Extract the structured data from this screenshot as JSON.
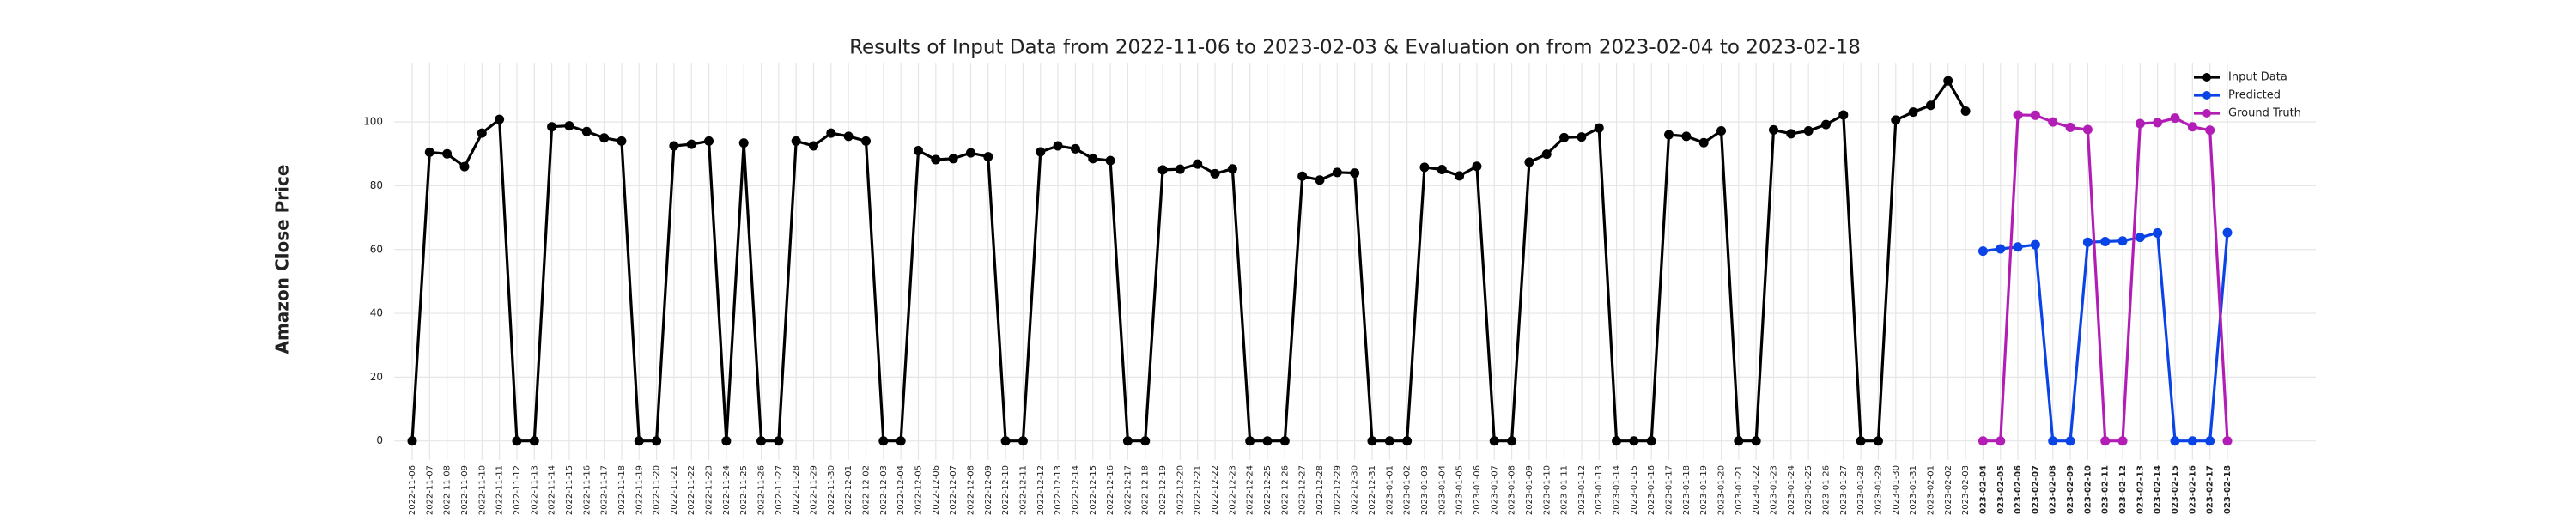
{
  "chart_data": {
    "type": "line",
    "title": "Results of Input Data from 2022-11-06 to 2023-02-03 & Evaluation on from 2023-02-04 to 2023-02-18",
    "ylabel": "Amazon Close Price",
    "categories": [
      "2022-11-06",
      "2022-11-07",
      "2022-11-08",
      "2022-11-09",
      "2022-11-10",
      "2022-11-11",
      "2022-11-12",
      "2022-11-13",
      "2022-11-14",
      "2022-11-15",
      "2022-11-16",
      "2022-11-17",
      "2022-11-18",
      "2022-11-19",
      "2022-11-20",
      "2022-11-21",
      "2022-11-22",
      "2022-11-23",
      "2022-11-24",
      "2022-11-25",
      "2022-11-26",
      "2022-11-27",
      "2022-11-28",
      "2022-11-29",
      "2022-11-30",
      "2022-12-01",
      "2022-12-02",
      "2022-12-03",
      "2022-12-04",
      "2022-12-05",
      "2022-12-06",
      "2022-12-07",
      "2022-12-08",
      "2022-12-09",
      "2022-12-10",
      "2022-12-11",
      "2022-12-12",
      "2022-12-13",
      "2022-12-14",
      "2022-12-15",
      "2022-12-16",
      "2022-12-17",
      "2022-12-18",
      "2022-12-19",
      "2022-12-20",
      "2022-12-21",
      "2022-12-22",
      "2022-12-23",
      "2022-12-24",
      "2022-12-25",
      "2022-12-26",
      "2022-12-27",
      "2022-12-28",
      "2022-12-29",
      "2022-12-30",
      "2022-12-31",
      "2023-01-01",
      "2023-01-02",
      "2023-01-03",
      "2023-01-04",
      "2023-01-05",
      "2023-01-06",
      "2023-01-07",
      "2023-01-08",
      "2023-01-09",
      "2023-01-10",
      "2023-01-11",
      "2023-01-12",
      "2023-01-13",
      "2023-01-14",
      "2023-01-15",
      "2023-01-16",
      "2023-01-17",
      "2023-01-18",
      "2023-01-19",
      "2023-01-20",
      "2023-01-21",
      "2023-01-22",
      "2023-01-23",
      "2023-01-24",
      "2023-01-25",
      "2023-01-26",
      "2023-01-27",
      "2023-01-28",
      "2023-01-29",
      "2023-01-30",
      "2023-01-31",
      "2023-02-01",
      "2023-02-02",
      "2023-02-03",
      "2023-02-04",
      "2023-02-05",
      "2023-02-06",
      "2023-02-07",
      "2023-02-08",
      "2023-02-09",
      "2023-02-10",
      "2023-02-11",
      "2023-02-12",
      "2023-02-13",
      "2023-02-14",
      "2023-02-15",
      "2023-02-16",
      "2023-02-17",
      "2023-02-18"
    ],
    "series": [
      {
        "name": "Input Data",
        "color": "#000000",
        "values": [
          0,
          90.5,
          90,
          86,
          96.5,
          100.8,
          0,
          0,
          98.5,
          98.8,
          97,
          95,
          94,
          0,
          0,
          92.5,
          93,
          94,
          0,
          93.4,
          0,
          0,
          94,
          92.5,
          96.5,
          95.5,
          94,
          0,
          0,
          91,
          88.2,
          88.5,
          90.3,
          89.1,
          0,
          0,
          90.6,
          92.5,
          91.6,
          88.5,
          87.9,
          0,
          0,
          85,
          85.2,
          86.8,
          83.8,
          85.3,
          0,
          0,
          0,
          83,
          81.8,
          84.2,
          84,
          0,
          0,
          0,
          85.8,
          85.1,
          83.1,
          86.1,
          0,
          0,
          87.4,
          89.9,
          95.1,
          95.3,
          98.1,
          0,
          0,
          0,
          96,
          95.5,
          93.5,
          97.2,
          0,
          0,
          97.5,
          96.3,
          97.2,
          99.2,
          102.2,
          0,
          0,
          100.6,
          103.1,
          105.2,
          112.9,
          103.4,
          null,
          null,
          null,
          null,
          null,
          null,
          null,
          null,
          null,
          null,
          null,
          null,
          null,
          null,
          null
        ]
      },
      {
        "name": "Predicted",
        "color": "#0b44e6",
        "values": [
          null,
          null,
          null,
          null,
          null,
          null,
          null,
          null,
          null,
          null,
          null,
          null,
          null,
          null,
          null,
          null,
          null,
          null,
          null,
          null,
          null,
          null,
          null,
          null,
          null,
          null,
          null,
          null,
          null,
          null,
          null,
          null,
          null,
          null,
          null,
          null,
          null,
          null,
          null,
          null,
          null,
          null,
          null,
          null,
          null,
          null,
          null,
          null,
          null,
          null,
          null,
          null,
          null,
          null,
          null,
          null,
          null,
          null,
          null,
          null,
          null,
          null,
          null,
          null,
          null,
          null,
          null,
          null,
          null,
          null,
          null,
          null,
          null,
          null,
          null,
          null,
          null,
          null,
          null,
          null,
          null,
          null,
          null,
          null,
          null,
          null,
          null,
          null,
          null,
          null,
          59.5,
          60.2,
          60.8,
          61.5,
          0,
          0,
          62.3,
          62.5,
          62.7,
          63.8,
          65.2,
          0,
          0,
          0,
          65.3
        ]
      },
      {
        "name": "Ground Truth",
        "color": "#b21db5",
        "values": [
          null,
          null,
          null,
          null,
          null,
          null,
          null,
          null,
          null,
          null,
          null,
          null,
          null,
          null,
          null,
          null,
          null,
          null,
          null,
          null,
          null,
          null,
          null,
          null,
          null,
          null,
          null,
          null,
          null,
          null,
          null,
          null,
          null,
          null,
          null,
          null,
          null,
          null,
          null,
          null,
          null,
          null,
          null,
          null,
          null,
          null,
          null,
          null,
          null,
          null,
          null,
          null,
          null,
          null,
          null,
          null,
          null,
          null,
          null,
          null,
          null,
          null,
          null,
          null,
          null,
          null,
          null,
          null,
          null,
          null,
          null,
          null,
          null,
          null,
          null,
          null,
          null,
          null,
          null,
          null,
          null,
          null,
          null,
          null,
          null,
          null,
          null,
          null,
          null,
          null,
          0,
          0,
          102.2,
          102.1,
          100,
          98.3,
          97.6,
          0,
          0,
          99.5,
          99.8,
          101.2,
          98.5,
          97.4,
          0
        ]
      }
    ],
    "ylim": [
      -6,
      118.6
    ],
    "yticks": [
      0,
      20,
      40,
      60,
      80,
      100
    ],
    "grid": true,
    "legend": "upper right"
  }
}
